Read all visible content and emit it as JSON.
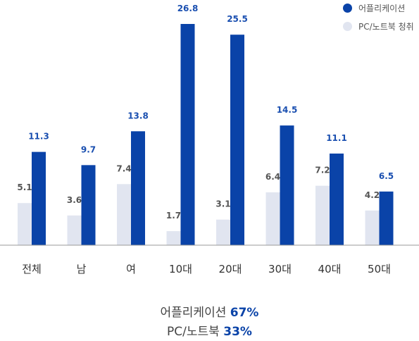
{
  "chart_data": {
    "type": "bar",
    "categories": [
      "전체",
      "남",
      "여",
      "10대",
      "20대",
      "30대",
      "40대",
      "50대"
    ],
    "series": [
      {
        "name": "PC/노트북 청취",
        "color": "#e1e5f0",
        "label_color": "#555555",
        "values": [
          5.1,
          3.6,
          7.4,
          1.7,
          3.1,
          6.4,
          7.2,
          4.2
        ]
      },
      {
        "name": "어플리케이션",
        "color": "#0a43a8",
        "label_color": "#1a4fb0",
        "values": [
          11.3,
          9.7,
          13.8,
          26.8,
          25.5,
          14.5,
          11.1,
          6.5
        ]
      }
    ],
    "ylim": [
      0,
      26.8
    ],
    "grid": false,
    "legend_position": "top-right"
  },
  "summary": [
    {
      "label": "어플리케이션",
      "value": "67%"
    },
    {
      "label": "PC/노트북",
      "value": "33%"
    }
  ]
}
